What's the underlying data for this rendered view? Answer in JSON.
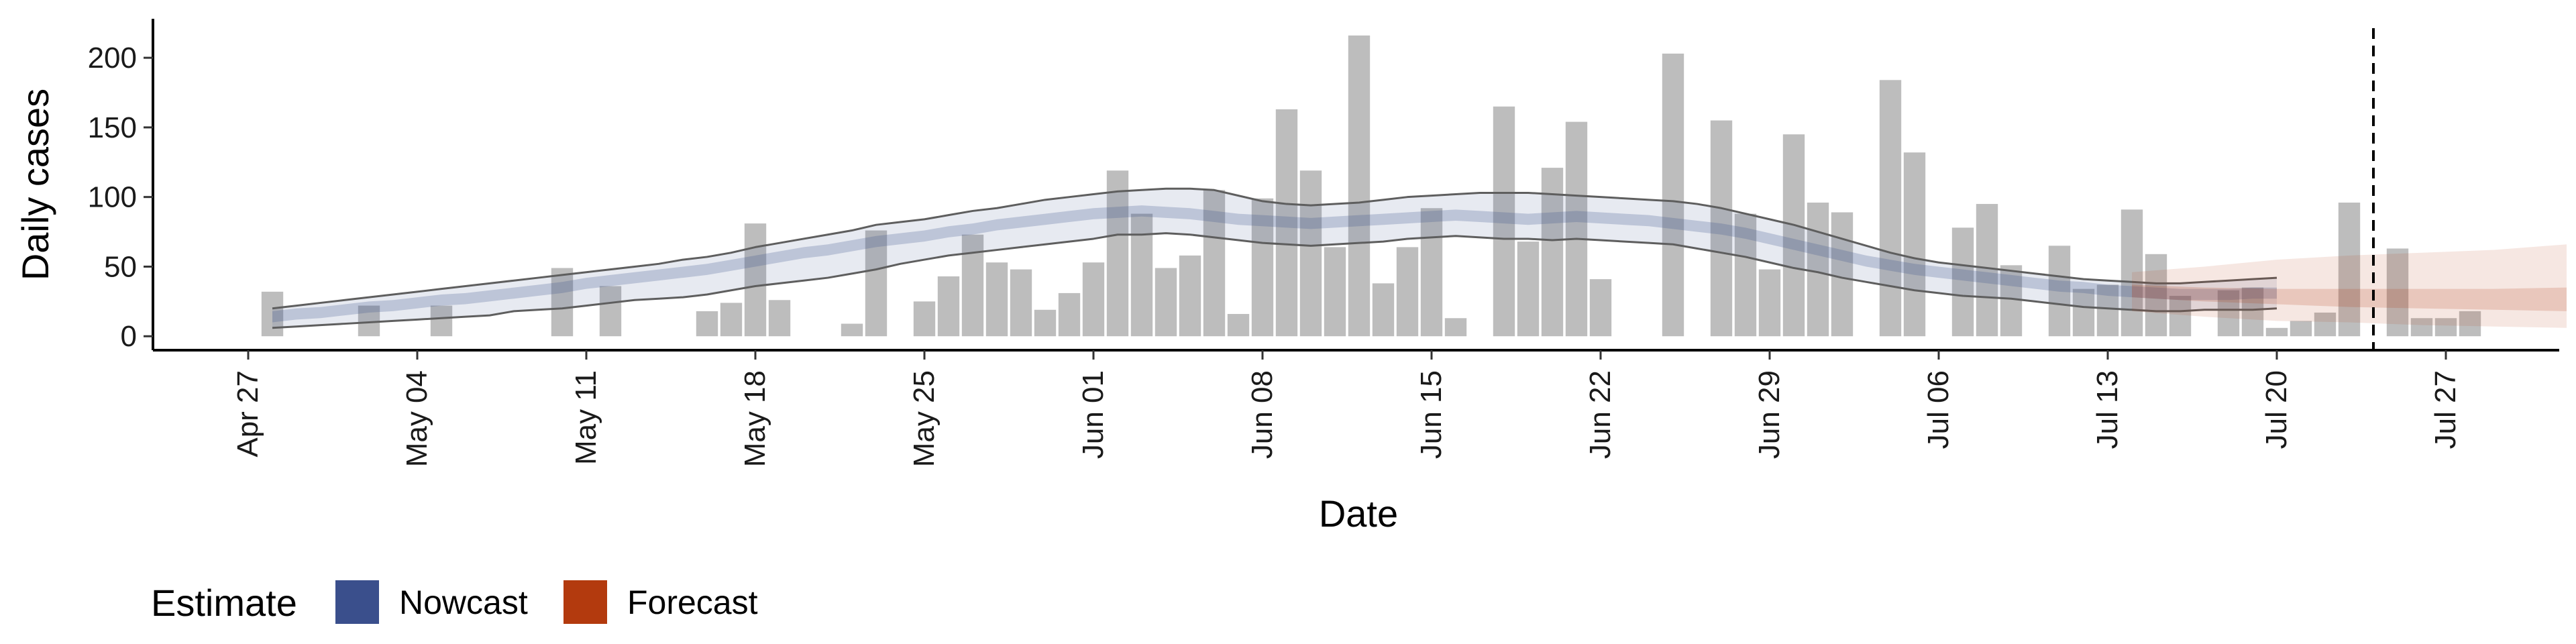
{
  "chart_data": {
    "type": "bar",
    "title": "",
    "xlabel": "Date",
    "ylabel": "Daily cases",
    "ylim": [
      -10,
      228
    ],
    "y_ticks": [
      0,
      50,
      100,
      150,
      200
    ],
    "x_ticks": [
      {
        "label": "Apr 27",
        "day": 0
      },
      {
        "label": "May 04",
        "day": 7
      },
      {
        "label": "May 11",
        "day": 14
      },
      {
        "label": "May 18",
        "day": 21
      },
      {
        "label": "May 25",
        "day": 28
      },
      {
        "label": "Jun 01",
        "day": 35
      },
      {
        "label": "Jun 08",
        "day": 42
      },
      {
        "label": "Jun 15",
        "day": 49
      },
      {
        "label": "Jun 22",
        "day": 56
      },
      {
        "label": "Jun 29",
        "day": 63
      },
      {
        "label": "Jul 06",
        "day": 70
      },
      {
        "label": "Jul 13",
        "day": 77
      },
      {
        "label": "Jul 20",
        "day": 84
      },
      {
        "label": "Jul 27",
        "day": 91
      }
    ],
    "xlim": [
      -4,
      96
    ],
    "bars": {
      "name": "Daily cases",
      "color": "#bdbdbd",
      "start_day": 1,
      "values": [
        32,
        0,
        0,
        0,
        22,
        0,
        0,
        22,
        0,
        0,
        0,
        0,
        49,
        0,
        36,
        0,
        0,
        0,
        18,
        24,
        81,
        26,
        0,
        0,
        9,
        76,
        0,
        25,
        43,
        73,
        53,
        48,
        19,
        31,
        53,
        119,
        88,
        49,
        58,
        105,
        16,
        99,
        163,
        119,
        64,
        216,
        38,
        64,
        92,
        13,
        0,
        165,
        68,
        121,
        154,
        41,
        0,
        0,
        203,
        0,
        155,
        88,
        48,
        145,
        96,
        89,
        0,
        184,
        132,
        0,
        78,
        95,
        51,
        0,
        65,
        34,
        37,
        91,
        59,
        29,
        0,
        33,
        35,
        6,
        11,
        17,
        96,
        0,
        63,
        13,
        13,
        18
      ]
    },
    "nowcast": {
      "name": "Nowcast",
      "color": "#3a4f8c",
      "start_day": 1,
      "median": [
        14,
        16,
        17,
        19,
        21,
        22,
        24,
        26,
        27,
        29,
        31,
        33,
        35,
        38,
        40,
        42,
        44,
        46,
        48,
        51,
        54,
        57,
        60,
        62,
        65,
        68,
        70,
        72,
        75,
        77,
        80,
        82,
        84,
        86,
        88,
        89,
        90,
        89,
        88,
        86,
        84,
        83,
        82,
        81,
        82,
        83,
        84,
        85,
        86,
        87,
        86,
        85,
        84,
        85,
        86,
        85,
        84,
        83,
        81,
        79,
        77,
        74,
        70,
        66,
        62,
        58,
        54,
        51,
        48,
        46,
        44,
        42,
        40,
        38,
        36,
        35,
        33,
        32,
        31,
        30,
        30,
        30,
        31,
        31
      ],
      "inner_low": [
        10,
        12,
        13,
        15,
        17,
        18,
        20,
        22,
        23,
        25,
        27,
        29,
        31,
        34,
        36,
        38,
        40,
        42,
        44,
        47,
        50,
        53,
        56,
        58,
        61,
        64,
        66,
        68,
        71,
        73,
        76,
        78,
        80,
        82,
        84,
        85,
        86,
        85,
        84,
        82,
        80,
        79,
        78,
        77,
        78,
        79,
        80,
        81,
        82,
        83,
        82,
        81,
        80,
        81,
        82,
        81,
        80,
        79,
        77,
        75,
        73,
        70,
        66,
        62,
        58,
        54,
        50,
        47,
        44,
        42,
        40,
        38,
        36,
        34,
        32,
        31,
        29,
        28,
        27,
        26,
        26,
        26,
        27,
        27
      ],
      "inner_high": [
        18,
        20,
        21,
        23,
        25,
        26,
        28,
        30,
        31,
        33,
        35,
        37,
        39,
        42,
        44,
        46,
        48,
        50,
        52,
        55,
        58,
        61,
        64,
        66,
        69,
        72,
        74,
        76,
        79,
        81,
        84,
        86,
        88,
        90,
        92,
        93,
        94,
        93,
        92,
        90,
        88,
        87,
        86,
        85,
        86,
        87,
        88,
        89,
        90,
        91,
        90,
        89,
        88,
        89,
        90,
        89,
        88,
        87,
        85,
        83,
        81,
        78,
        74,
        70,
        66,
        62,
        58,
        55,
        52,
        50,
        48,
        46,
        44,
        42,
        40,
        39,
        37,
        36,
        35,
        34,
        34,
        34,
        35,
        35
      ],
      "outer_low": [
        6,
        7,
        8,
        9,
        10,
        11,
        12,
        13,
        14,
        15,
        18,
        19,
        20,
        22,
        24,
        26,
        27,
        28,
        30,
        33,
        36,
        38,
        40,
        42,
        45,
        48,
        52,
        55,
        58,
        60,
        62,
        64,
        66,
        68,
        70,
        73,
        73,
        74,
        73,
        71,
        69,
        67,
        66,
        65,
        66,
        67,
        68,
        70,
        71,
        72,
        71,
        70,
        70,
        69,
        70,
        69,
        68,
        67,
        66,
        63,
        60,
        57,
        53,
        49,
        46,
        42,
        39,
        36,
        33,
        31,
        29,
        28,
        27,
        25,
        23,
        21,
        20,
        19,
        18,
        18,
        19,
        19,
        19,
        20
      ],
      "outer_high": [
        20,
        22,
        24,
        26,
        28,
        30,
        32,
        34,
        36,
        38,
        40,
        42,
        44,
        46,
        48,
        50,
        52,
        55,
        57,
        60,
        64,
        67,
        70,
        73,
        76,
        80,
        82,
        84,
        87,
        90,
        92,
        95,
        98,
        100,
        102,
        104,
        105,
        106,
        106,
        105,
        101,
        97,
        95,
        94,
        95,
        96,
        98,
        100,
        101,
        102,
        103,
        103,
        103,
        102,
        101,
        100,
        99,
        98,
        97,
        95,
        92,
        88,
        84,
        80,
        75,
        70,
        65,
        60,
        56,
        53,
        51,
        49,
        47,
        45,
        43,
        41,
        40,
        39,
        38,
        38,
        39,
        40,
        41,
        42
      ]
    },
    "forecast": {
      "name": "Forecast",
      "color": "#b33a0e",
      "days": [
        78,
        81,
        84,
        87,
        90,
        93,
        96
      ],
      "median": [
        32,
        30,
        28,
        27,
        26,
        25,
        25
      ],
      "inner_low": [
        28,
        25,
        23,
        21,
        20,
        19,
        18
      ],
      "inner_high": [
        37,
        35,
        34,
        34,
        34,
        34,
        35
      ],
      "outer_low": [
        18,
        14,
        11,
        10,
        8,
        7,
        6
      ],
      "outer_high": [
        46,
        50,
        55,
        58,
        60,
        62,
        66
      ]
    },
    "vline_day": 88,
    "legend": {
      "title": "Estimate",
      "position": "bottom-left",
      "items": [
        {
          "label": "Nowcast",
          "color": "#3a4f8c"
        },
        {
          "label": "Forecast",
          "color": "#b33a0e"
        }
      ]
    }
  }
}
